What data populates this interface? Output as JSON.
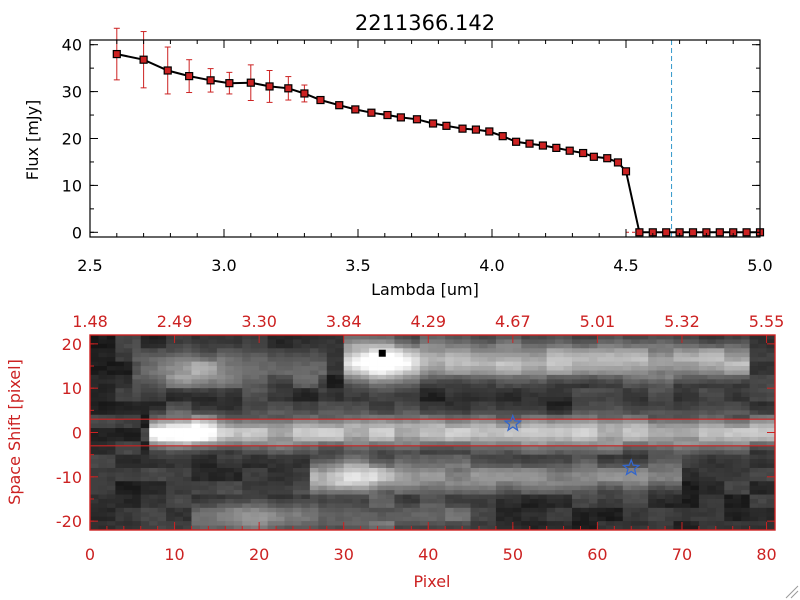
{
  "colors": {
    "axis_bottom": "#cc2222",
    "line": "#000000",
    "error_bars": "#cc2222",
    "marker_fill": "#cc2222",
    "vline": "#3399cc",
    "band": "#cc2222",
    "star": "#3366cc"
  },
  "chart_data": [
    {
      "type": "line",
      "title": "2211366.142",
      "xlabel": "Lambda [um]",
      "ylabel": "Flux [mJy]",
      "xlim": [
        2.5,
        5.0
      ],
      "ylim": [
        -1,
        41
      ],
      "xticks": [
        "2.5",
        "3.0",
        "3.5",
        "4.0",
        "4.5",
        "5.0"
      ],
      "yticks": [
        "0",
        "10",
        "20",
        "30",
        "40"
      ],
      "xtick_values": [
        2.5,
        3.0,
        3.5,
        4.0,
        4.5,
        5.0
      ],
      "ytick_values": [
        0,
        10,
        20,
        30,
        40
      ],
      "vline_x": 4.67,
      "hline_y": 0,
      "series": [
        {
          "x": [
            2.6,
            2.7,
            2.79,
            2.87,
            2.95,
            3.02,
            3.1,
            3.17,
            3.24,
            3.3,
            3.36,
            3.43,
            3.49,
            3.55,
            3.61,
            3.66,
            3.72,
            3.78,
            3.83,
            3.89,
            3.94,
            3.99,
            4.04,
            4.09,
            4.14,
            4.19,
            4.24,
            4.29,
            4.34,
            4.38,
            4.43,
            4.47,
            4.5,
            4.55,
            4.6,
            4.65,
            4.7,
            4.75,
            4.8,
            4.85,
            4.9,
            4.95,
            5.0
          ],
          "y": [
            38.0,
            36.8,
            34.5,
            33.3,
            32.4,
            31.8,
            31.9,
            31.1,
            30.7,
            29.6,
            28.2,
            27.1,
            26.2,
            25.5,
            25.0,
            24.5,
            24.1,
            23.2,
            22.7,
            22.1,
            21.9,
            21.5,
            20.5,
            19.3,
            18.9,
            18.5,
            18.0,
            17.4,
            16.9,
            16.1,
            15.8,
            14.9,
            13.0,
            0,
            0,
            0,
            0,
            0,
            0,
            0,
            0,
            0,
            0
          ],
          "yerr": [
            5.5,
            6.0,
            5.0,
            3.5,
            2.5,
            2.3,
            3.8,
            3.4,
            2.5,
            1.8,
            0,
            0,
            0,
            0,
            0,
            0,
            0,
            0,
            0,
            0,
            0,
            0,
            0,
            0,
            0,
            0,
            0,
            0,
            0,
            0,
            0,
            0,
            0,
            0,
            0,
            0,
            0,
            0,
            0,
            0,
            0,
            0,
            0
          ]
        }
      ]
    },
    {
      "type": "heatmap",
      "xlabel": "Pixel",
      "ylabel": "Space Shift [pixel]",
      "xlim": [
        0,
        81
      ],
      "ylim": [
        -22,
        22
      ],
      "xticks": [
        "0",
        "10",
        "20",
        "30",
        "40",
        "50",
        "60",
        "70",
        "80"
      ],
      "xtick_values": [
        0,
        10,
        20,
        30,
        40,
        50,
        60,
        70,
        80
      ],
      "yticks": [
        "-20",
        "-10",
        "0",
        "10",
        "20"
      ],
      "ytick_values": [
        -20,
        -10,
        0,
        10,
        20
      ],
      "top_axis_ticks": [
        "1.48",
        "2.49",
        "3.30",
        "3.84",
        "4.29",
        "4.67",
        "5.01",
        "5.32",
        "5.55"
      ],
      "band_y": [
        -3,
        3
      ],
      "stars": [
        {
          "x": 50,
          "y": 2
        },
        {
          "x": 64,
          "y": -8
        }
      ],
      "traces": [
        {
          "y": 0,
          "x_start": 7,
          "x_end": 81,
          "peak_x": 11,
          "peak": 1.0,
          "tail": 0.55,
          "width": 2.4
        },
        {
          "y": 16,
          "x_start": 30,
          "x_end": 78,
          "peak_x": 34,
          "peak": 0.95,
          "tail": 0.5,
          "width": 3.0
        },
        {
          "y": -10,
          "x_start": 26,
          "x_end": 70,
          "peak_x": 31,
          "peak": 0.75,
          "tail": 0.35,
          "width": 2.4
        },
        {
          "y": 14,
          "x_start": 5,
          "x_end": 28,
          "peak_x": 12,
          "peak": 0.45,
          "tail": 0.2,
          "width": 3.0
        },
        {
          "y": -19,
          "x_start": 12,
          "x_end": 45,
          "peak_x": 20,
          "peak": 0.45,
          "tail": 0.25,
          "width": 2.5
        }
      ]
    }
  ]
}
